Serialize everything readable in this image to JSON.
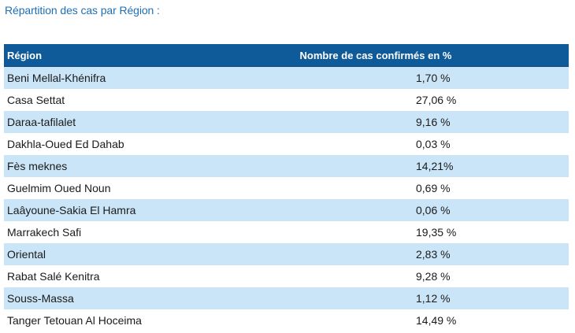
{
  "heading": "Répartition des cas par Région :",
  "table": {
    "columns": [
      "Région",
      "Nombre de cas confirmés en %"
    ],
    "rows": [
      {
        "region": "Beni Mellal-Khénifra",
        "value": "1,70 %"
      },
      {
        "region": "Casa Settat",
        "value": "27,06 %"
      },
      {
        "region": "Daraa-tafilalet",
        "value": "9,16 %"
      },
      {
        "region": "Dakhla-Oued Ed Dahab",
        "value": "0,03 %"
      },
      {
        "region": "Fès meknes",
        "value": "14,21%"
      },
      {
        "region": "Guelmim Oued Noun",
        "value": "0,69 %"
      },
      {
        "region": "Laâyoune-Sakia El Hamra",
        "value": "0,06 %"
      },
      {
        "region": "Marrakech Safi",
        "value": "19,35 %"
      },
      {
        "region": "Oriental",
        "value": "2,83 %"
      },
      {
        "region": "Rabat Salé Kenitra",
        "value": "9,28 %"
      },
      {
        "region": "Souss-Massa",
        "value": "1,12 %"
      },
      {
        "region": "Tanger Tetouan Al Hoceima",
        "value": "14,49 %"
      }
    ]
  }
}
